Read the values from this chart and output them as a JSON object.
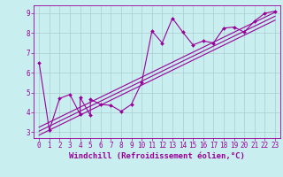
{
  "xlabel": "Windchill (Refroidissement éolien,°C)",
  "ylabel": "",
  "background_color": "#c8eef0",
  "line_color": "#990099",
  "xlim": [
    -0.5,
    23.5
  ],
  "ylim": [
    2.7,
    9.4
  ],
  "xticks": [
    0,
    1,
    2,
    3,
    4,
    5,
    6,
    7,
    8,
    9,
    10,
    11,
    12,
    13,
    14,
    15,
    16,
    17,
    18,
    19,
    20,
    21,
    22,
    23
  ],
  "yticks": [
    3,
    4,
    5,
    6,
    7,
    8,
    9
  ],
  "scatter_x": [
    0,
    1,
    2,
    3,
    4,
    4,
    5,
    5,
    6,
    7,
    8,
    9,
    10,
    11,
    12,
    13,
    14,
    15,
    16,
    17,
    18,
    19,
    20,
    21,
    22,
    23
  ],
  "scatter_y": [
    6.5,
    3.1,
    4.7,
    4.9,
    3.9,
    4.75,
    3.85,
    4.65,
    4.4,
    4.35,
    4.05,
    4.4,
    5.5,
    8.1,
    7.5,
    8.75,
    8.05,
    7.4,
    7.6,
    7.5,
    8.25,
    8.3,
    8.05,
    8.6,
    9.0,
    9.1
  ],
  "line1_x": [
    0,
    23
  ],
  "line1_y": [
    3.05,
    8.85
  ],
  "line2_x": [
    0,
    23
  ],
  "line2_y": [
    3.25,
    9.05
  ],
  "line3_x": [
    0,
    23
  ],
  "line3_y": [
    2.85,
    8.65
  ],
  "grid_color": "#aaccd0",
  "tick_label_fontsize": 5.5,
  "xlabel_fontsize": 6.5
}
